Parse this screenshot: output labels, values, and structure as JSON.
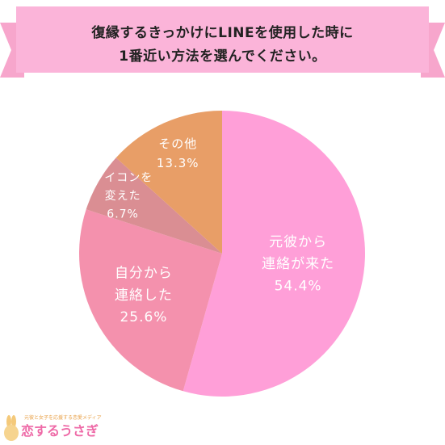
{
  "title": {
    "line1": "復縁するきっかけにLINEを使用した時に",
    "line2": "1番近い方法を選んでください。"
  },
  "colors": {
    "banner": "#fbb4d9",
    "banner_stripe": "#f7a6cc",
    "label_text": "#ffffff"
  },
  "chart_data": {
    "type": "pie",
    "start": "12 o'clock",
    "direction": "clockwise",
    "slices": [
      {
        "lines": [
          "元彼から",
          "連絡が来た"
        ],
        "percent_label": "54.4%",
        "value": 54.4,
        "color": "#ff9fd8"
      },
      {
        "lines": [
          "自分から",
          "連絡した"
        ],
        "percent_label": "25.6%",
        "value": 25.6,
        "color": "#f491ad"
      },
      {
        "lines": [
          "アイコンを",
          "変えた"
        ],
        "percent_label": "6.7%",
        "value": 6.7,
        "color": "#da8e93"
      },
      {
        "lines": [
          "その他"
        ],
        "percent_label": "13.3%",
        "value": 13.3,
        "color": "#e89e67"
      }
    ]
  },
  "logo": {
    "tagline": "元彼と女子を応援する恋愛メディア",
    "brand": "恋するうさぎ",
    "icon": "rabbit-icon"
  }
}
